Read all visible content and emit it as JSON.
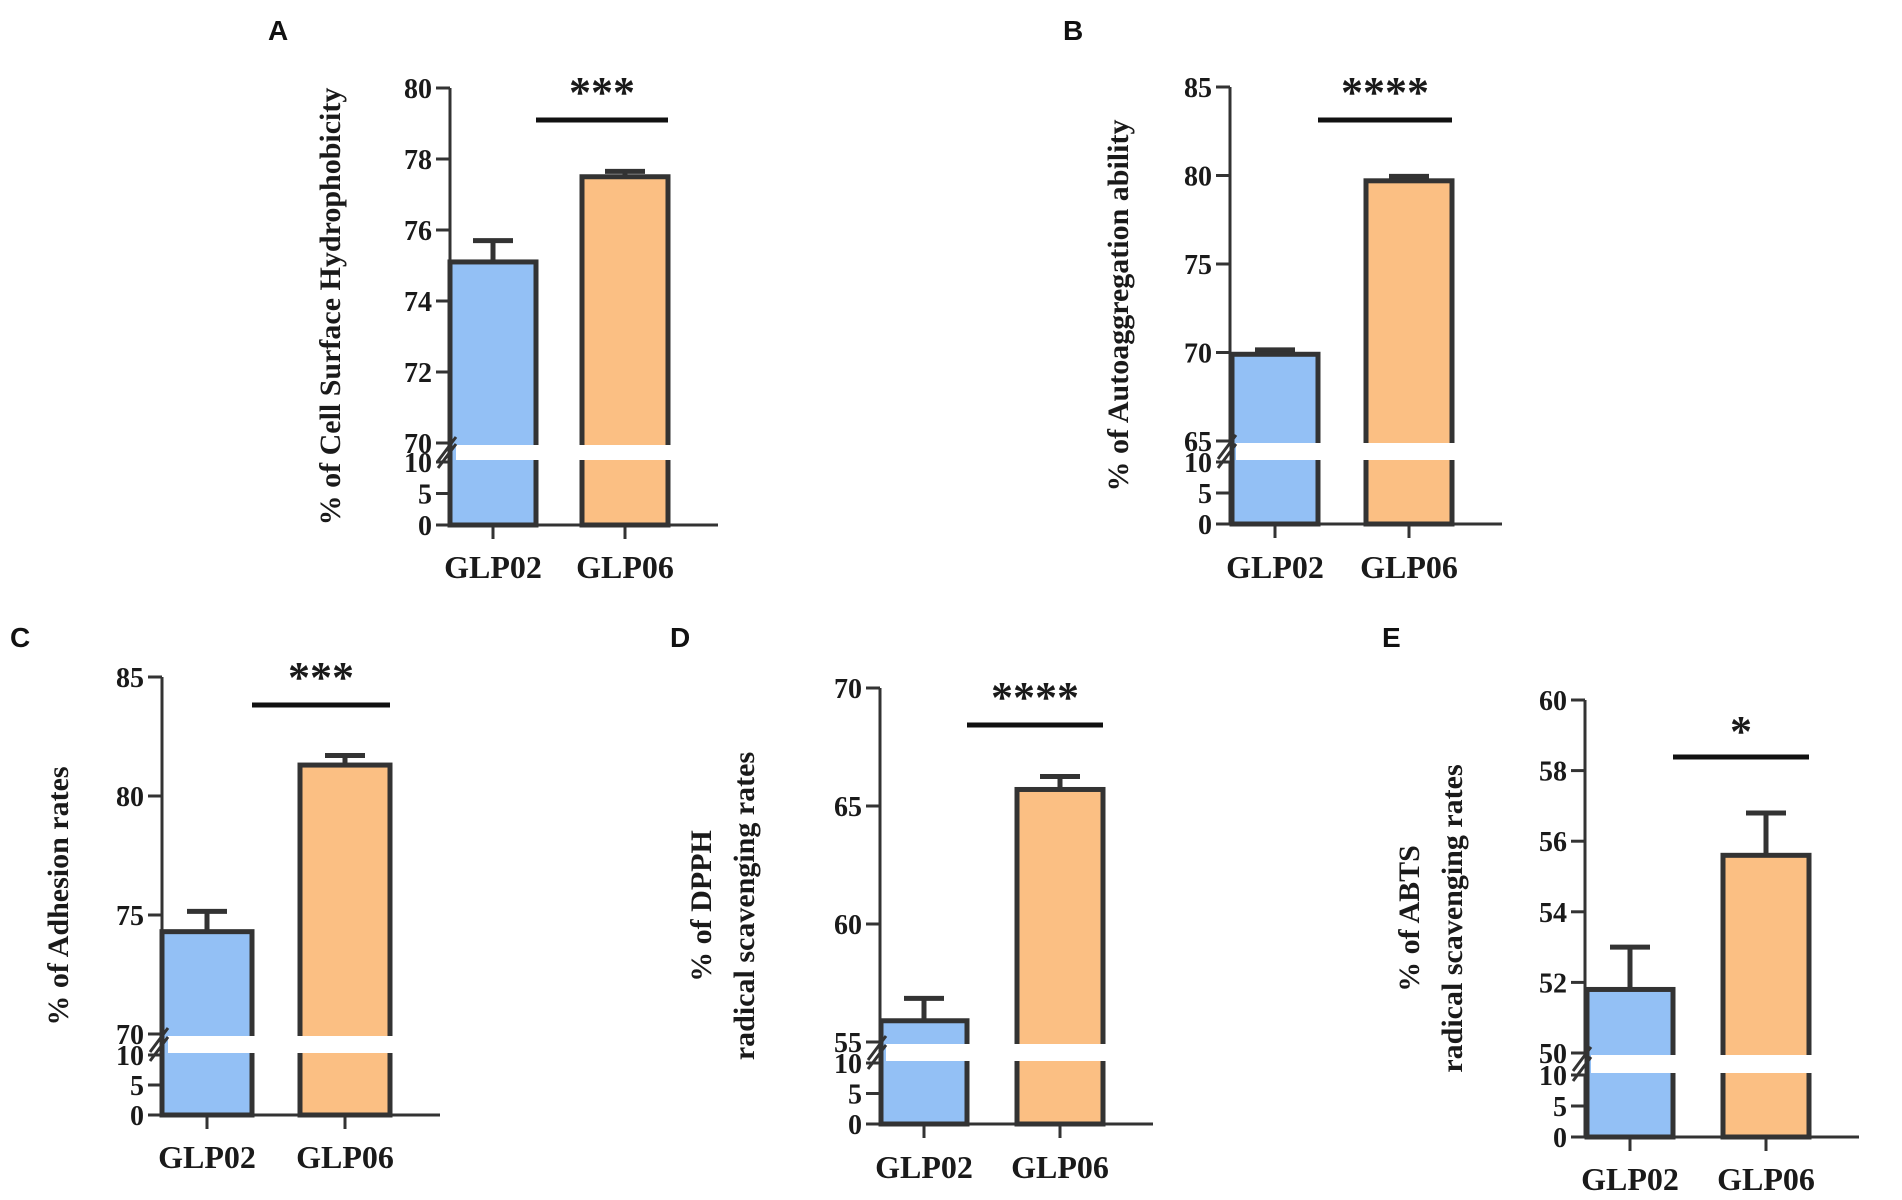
{
  "chart_data": [
    {
      "panel": "A",
      "type": "bar",
      "categories": [
        "GLP02",
        "GLP06"
      ],
      "values": [
        75.1,
        77.5
      ],
      "errors": [
        0.6,
        0.15
      ],
      "colors": [
        "#93c0f5",
        "#fbbf83"
      ],
      "ylabel": "% of  Cell Surface Hydrophobicity",
      "ylabel_lines": [
        "% of  Cell Surface Hydrophobicity"
      ],
      "ylim": [
        70,
        80
      ],
      "yticks": [
        70,
        72,
        74,
        76,
        78,
        80
      ],
      "lower_ticks": [
        0,
        5,
        10
      ],
      "significance": "***"
    },
    {
      "panel": "B",
      "type": "bar",
      "categories": [
        "GLP02",
        "GLP06"
      ],
      "values": [
        69.9,
        79.7
      ],
      "errors": [
        0.25,
        0.25
      ],
      "colors": [
        "#93c0f5",
        "#fbbf83"
      ],
      "ylabel": "% of Autoaggregation ability",
      "ylabel_lines": [
        "% of Autoaggregation ability"
      ],
      "ylim": [
        65,
        85
      ],
      "yticks": [
        65,
        70,
        75,
        80,
        85
      ],
      "lower_ticks": [
        0,
        5,
        10
      ],
      "significance": "****"
    },
    {
      "panel": "C",
      "type": "bar",
      "categories": [
        "GLP02",
        "GLP06"
      ],
      "values": [
        74.3,
        81.3
      ],
      "errors": [
        0.85,
        0.4
      ],
      "colors": [
        "#93c0f5",
        "#fbbf83"
      ],
      "ylabel": "% of  Adhesion rates",
      "ylabel_lines": [
        "% of  Adhesion rates"
      ],
      "ylim": [
        70,
        85
      ],
      "yticks": [
        70,
        75,
        80,
        85
      ],
      "lower_ticks": [
        0,
        5,
        10
      ],
      "significance": "***"
    },
    {
      "panel": "D",
      "type": "bar",
      "categories": [
        "GLP02",
        "GLP06"
      ],
      "values": [
        55.9,
        65.7
      ],
      "errors": [
        0.95,
        0.55
      ],
      "colors": [
        "#93c0f5",
        "#fbbf83"
      ],
      "ylabel": "% of DPPH radical scavenging rates",
      "ylabel_lines": [
        "% of DPPH",
        "radical scavenging rates"
      ],
      "ylim": [
        55,
        70
      ],
      "yticks": [
        55,
        60,
        65,
        70
      ],
      "lower_ticks": [
        0,
        5,
        10
      ],
      "significance": "****"
    },
    {
      "panel": "E",
      "type": "bar",
      "categories": [
        "GLP02",
        "GLP06"
      ],
      "values": [
        51.8,
        55.6
      ],
      "errors": [
        1.2,
        1.2
      ],
      "colors": [
        "#93c0f5",
        "#fbbf83"
      ],
      "ylabel": "% of ABTS radical scavenging rates",
      "ylabel_lines": [
        "% of ABTS",
        "radical scavenging rates"
      ],
      "ylim": [
        50,
        60
      ],
      "yticks": [
        50,
        52,
        54,
        56,
        58,
        60
      ],
      "lower_ticks": [
        0,
        5,
        10
      ],
      "significance": "*"
    }
  ]
}
